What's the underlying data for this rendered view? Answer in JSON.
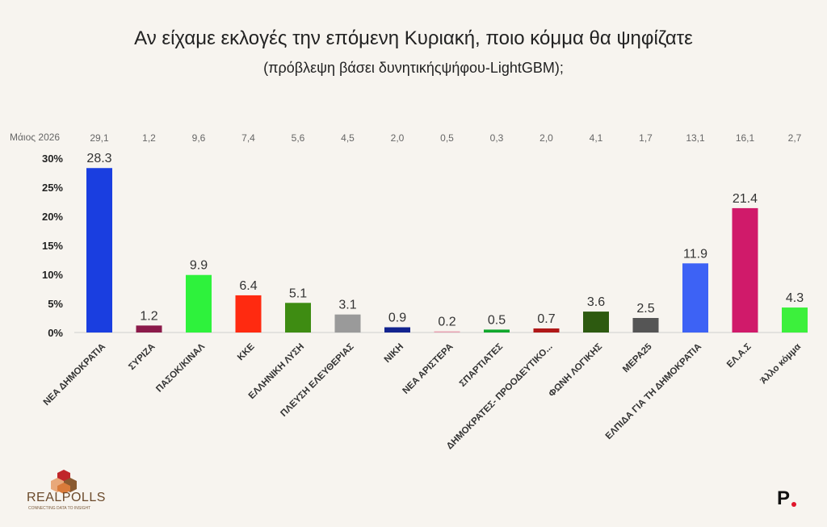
{
  "chart_data": {
    "type": "bar",
    "title": "Αν είχαμε εκλογές την επόμενη Κυριακή, ποιο κόμμα θα ψηφίζατε",
    "subtitle": "(πρόβλεψη βάσει δυνητικήςψήφου-LightGBM);",
    "previous_label": "Μάιος 2026",
    "ylim": [
      0,
      30
    ],
    "yticks": [
      "0%",
      "5%",
      "10%",
      "15%",
      "20%",
      "25%",
      "30%"
    ],
    "grid": false,
    "categories": [
      "ΝΕΑ ΔΗΜΟΚΡΑΤΙΑ",
      "ΣΥΡΙΖΑ",
      "ΠΑΣΟΚ/ΚΙΝΑΛ",
      "ΚΚΕ",
      "ΕΛΛΗΝΙΚΗ ΛΥΣΗ",
      "ΠΛΕΥΣΗ ΕΛΕΥΘΕΡΙΑΣ",
      "ΝΙΚΗ",
      "ΝΕΑ ΑΡΙΣΤΕΡΑ",
      "ΣΠΑΡΤΙΑΤΕΣ",
      "ΔΗΜΟΚΡΑΤΕΣ- ΠΡΟΟΔΕΥΤΙΚΟ...",
      "ΦΩΝΗ ΛΟΓΙΚΗΣ",
      "ΜΕΡΑ25",
      "ΕΛΠΙΔΑ ΓΙΑ ΤΗ ΔΗΜΟΚΡΑΤΙΑ",
      "ΕΛ.Α.Σ",
      "Άλλο κόμμα"
    ],
    "values": [
      28.3,
      1.2,
      9.9,
      6.4,
      5.1,
      3.1,
      0.9,
      0.2,
      0.5,
      0.7,
      3.6,
      2.5,
      11.9,
      21.4,
      4.3
    ],
    "value_labels": [
      "28.3",
      "1.2",
      "9.9",
      "6.4",
      "5.1",
      "3.1",
      "0.9",
      "0.2",
      "0.5",
      "0.7",
      "3.6",
      "2.5",
      "11.9",
      "21.4",
      "4.3"
    ],
    "previous_values": [
      "29,1",
      "1,2",
      "9,6",
      "7,4",
      "5,6",
      "4,5",
      "2,0",
      "0,5",
      "0,3",
      "2,0",
      "4,1",
      "1,7",
      "13,1",
      "16,1",
      "2,7"
    ],
    "colors": [
      "#1a3ee0",
      "#8b1a4a",
      "#2ef23c",
      "#ff2a10",
      "#3e8c12",
      "#9a9a9a",
      "#12238f",
      "#e8a0b0",
      "#10a82c",
      "#b01818",
      "#2d5a10",
      "#555555",
      "#3d62f5",
      "#d01a6a",
      "#3cf03c"
    ]
  },
  "branding": {
    "realpolls": "REALPOLLS",
    "realpolls_tagline": "CONNECTING DATA TO INSIGHT",
    "p_logo": "P"
  }
}
